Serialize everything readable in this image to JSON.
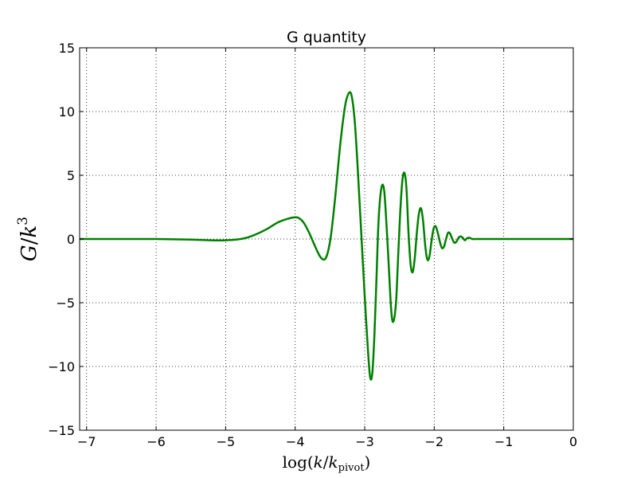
{
  "chart_data": {
    "type": "line",
    "title": "G quantity",
    "xlabel": "log(k/k_pivot)",
    "ylabel": "G/k^3",
    "xlim": [
      -7.1,
      0
    ],
    "ylim": [
      -15,
      15
    ],
    "xticks": [
      -7,
      -6,
      -5,
      -4,
      -3,
      -2,
      -1,
      0
    ],
    "yticks": [
      -15,
      -10,
      -5,
      0,
      5,
      10,
      15
    ],
    "xtick_labels": [
      "−7",
      "−6",
      "−5",
      "−4",
      "−3",
      "−2",
      "−1",
      "0"
    ],
    "ytick_labels": [
      "−15",
      "−10",
      "−5",
      "0",
      "5",
      "10",
      "15"
    ],
    "grid": true,
    "series": [
      {
        "color": "#008000",
        "x": [
          -7.1,
          -6.5,
          -6.0,
          -5.5,
          -5.2,
          -5.0,
          -4.85,
          -4.7,
          -4.55,
          -4.4,
          -4.25,
          -4.1,
          -4.0,
          -3.95,
          -3.88,
          -3.8,
          -3.72,
          -3.65,
          -3.6,
          -3.56,
          -3.52,
          -3.48,
          -3.42,
          -3.35,
          -3.28,
          -3.22,
          -3.18,
          -3.14,
          -3.1,
          -3.05,
          -3.0,
          -2.95,
          -2.92,
          -2.89,
          -2.86,
          -2.83,
          -2.8,
          -2.76,
          -2.72,
          -2.68,
          -2.65,
          -2.62,
          -2.59,
          -2.55,
          -2.52,
          -2.49,
          -2.46,
          -2.43,
          -2.4,
          -2.37,
          -2.34,
          -2.31,
          -2.28,
          -2.25,
          -2.22,
          -2.19,
          -2.16,
          -2.13,
          -2.1,
          -2.07,
          -2.04,
          -2.01,
          -1.98,
          -1.95,
          -1.92,
          -1.89,
          -1.86,
          -1.83,
          -1.8,
          -1.77,
          -1.74,
          -1.71,
          -1.68,
          -1.65,
          -1.62,
          -1.59,
          -1.56,
          -1.53,
          -1.5,
          -1.45,
          -1.4,
          -1.3,
          -1.0,
          -0.5,
          0.0
        ],
        "y": [
          0.0,
          0.0,
          0.0,
          -0.05,
          -0.1,
          -0.1,
          -0.05,
          0.1,
          0.4,
          0.8,
          1.3,
          1.6,
          1.7,
          1.65,
          1.3,
          0.5,
          -0.5,
          -1.3,
          -1.6,
          -1.5,
          -0.8,
          0.5,
          3.5,
          7.5,
          10.5,
          11.5,
          11.0,
          9.0,
          5.5,
          0.5,
          -4.5,
          -9.0,
          -10.9,
          -10.5,
          -7.5,
          -3.0,
          1.5,
          4.0,
          3.8,
          0.5,
          -2.5,
          -5.5,
          -6.5,
          -5.0,
          -1.5,
          2.0,
          4.5,
          5.2,
          4.0,
          0.5,
          -2.0,
          -2.6,
          -1.5,
          0.5,
          2.0,
          2.4,
          1.4,
          -0.5,
          -1.6,
          -1.4,
          -0.2,
          0.8,
          1.0,
          0.5,
          -0.2,
          -0.7,
          -0.6,
          0.0,
          0.5,
          0.4,
          0.0,
          -0.3,
          -0.2,
          0.1,
          0.2,
          0.1,
          -0.1,
          0.05,
          0.1,
          0.0,
          0.0,
          0.0,
          0.0,
          0.0,
          0.0
        ]
      }
    ]
  }
}
